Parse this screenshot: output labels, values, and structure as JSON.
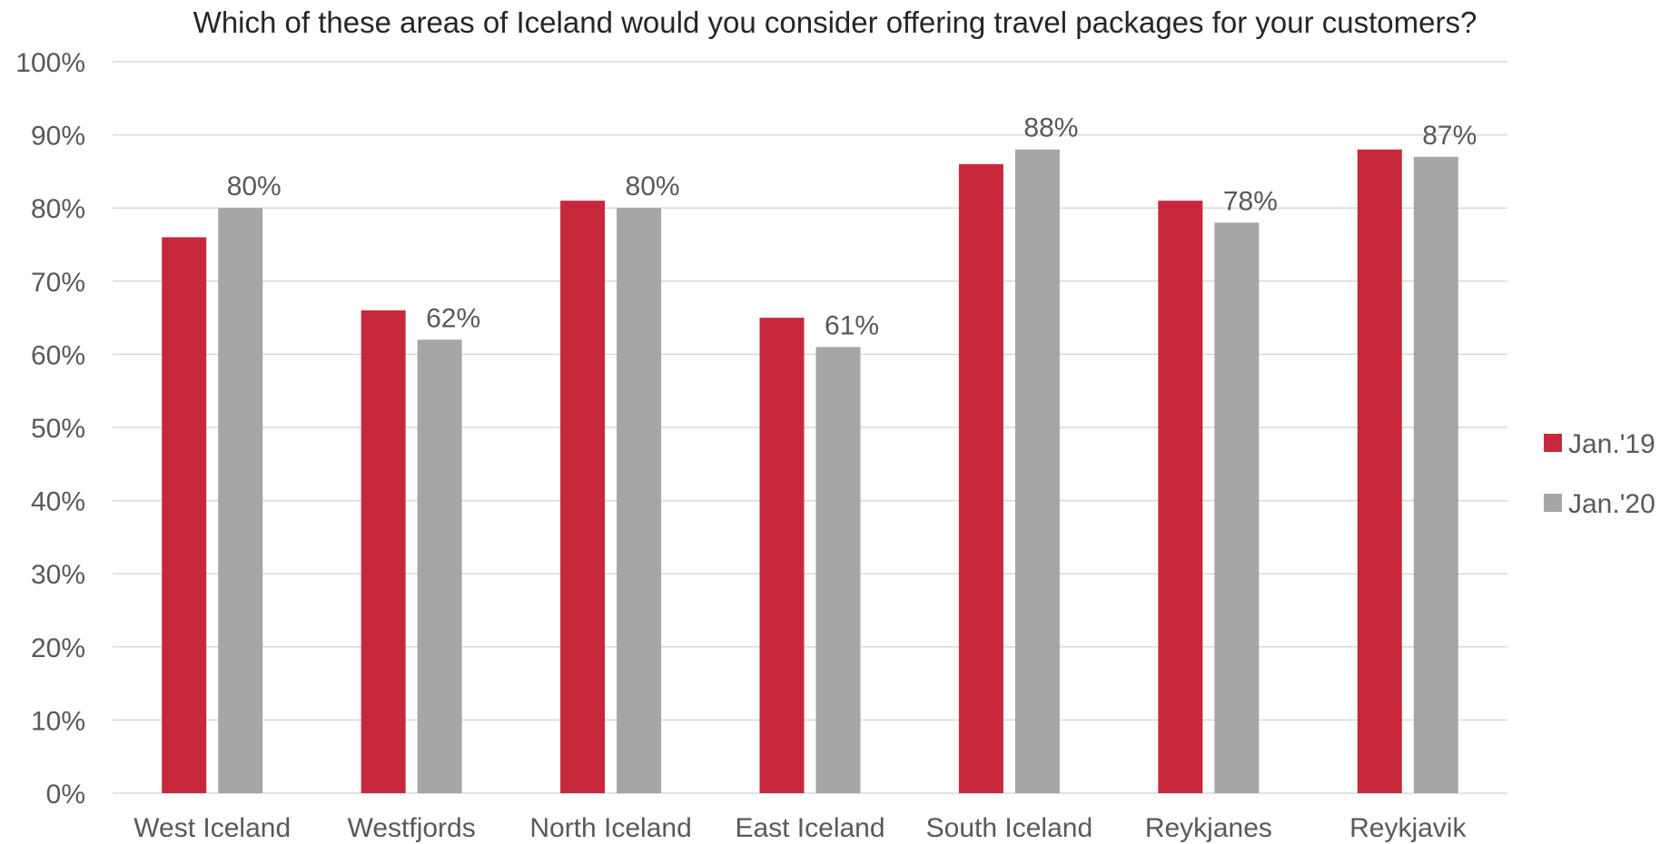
{
  "chart_data": {
    "type": "bar",
    "title": "Which of these areas of Iceland would you consider offering travel packages for your customers?",
    "categories": [
      "West Iceland",
      "Westfjords",
      "North Iceland",
      "East Iceland",
      "South Iceland",
      "Reykjanes",
      "Reykjavik"
    ],
    "series": [
      {
        "name": "Jan.'19",
        "color": "#C8283C",
        "values": [
          76,
          66,
          81,
          65,
          86,
          81,
          88
        ]
      },
      {
        "name": "Jan.'20",
        "color": "#A6A6A6",
        "values": [
          80,
          62,
          80,
          61,
          88,
          78,
          87
        ]
      }
    ],
    "data_labels": {
      "series": "Jan.'20",
      "labels": [
        "80%",
        "62%",
        "80%",
        "61%",
        "88%",
        "78%",
        "87%"
      ]
    },
    "ylim": [
      0,
      100
    ],
    "yticks": [
      0,
      10,
      20,
      30,
      40,
      50,
      60,
      70,
      80,
      90,
      100
    ],
    "ytick_labels": [
      "0%",
      "10%",
      "20%",
      "30%",
      "40%",
      "50%",
      "60%",
      "70%",
      "80%",
      "90%",
      "100%"
    ],
    "grid": true,
    "legend_position": "right",
    "xlabel": "",
    "ylabel": ""
  }
}
